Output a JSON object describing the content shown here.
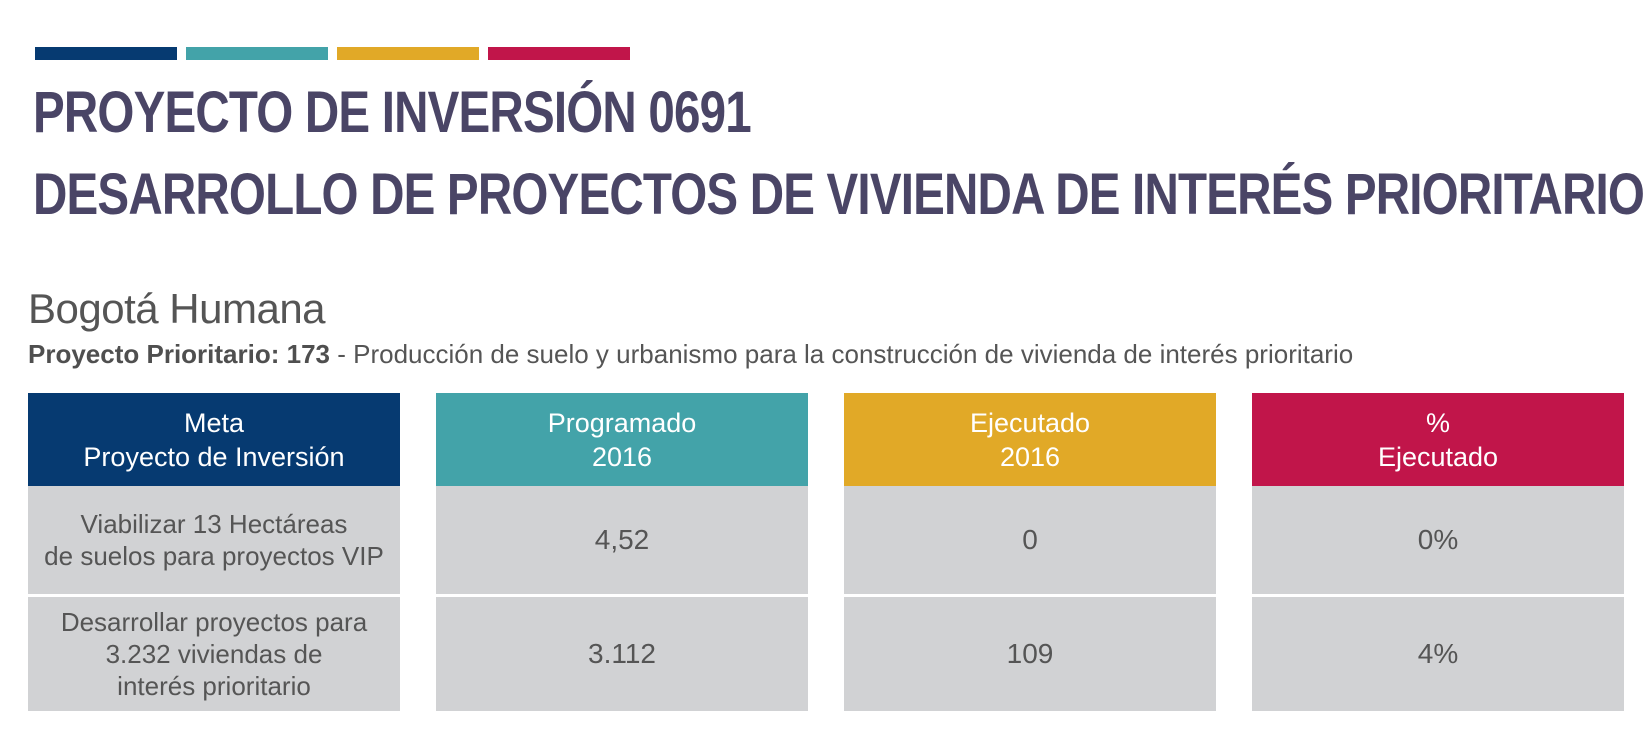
{
  "colors": {
    "navy": "#063a71",
    "teal": "#43a3a9",
    "gold": "#e1a927",
    "crimson": "#c1154a",
    "title": "#4a4566",
    "cell_bg": "#d1d2d4"
  },
  "header": {
    "title_line1": "PROYECTO DE INVERSIÓN 0691",
    "title_line2": "DESARROLLO DE PROYECTOS DE VIVIENDA DE INTERÉS PRIORITARIO"
  },
  "plan": {
    "name": "Bogotá Humana",
    "project_label": "Proyecto Prioritario: 173",
    "project_desc": " - Producción de suelo y urbanismo para la construcción de vivienda de interés prioritario"
  },
  "table": {
    "columns": [
      {
        "line1": "Meta",
        "line2": "Proyecto de Inversión"
      },
      {
        "line1": "Programado",
        "line2": "2016"
      },
      {
        "line1": "Ejecutado",
        "line2": "2016"
      },
      {
        "line1": "%",
        "line2": "Ejecutado"
      }
    ],
    "rows": [
      {
        "meta_lines": [
          "Viabilizar 13 Hectáreas",
          "de suelos para proyectos VIP"
        ],
        "programado": "4,52",
        "ejecutado": "0",
        "porcentaje": "0%"
      },
      {
        "meta_lines": [
          "Desarrollar proyectos para",
          "3.232 viviendas de",
          "interés prioritario"
        ],
        "programado": "3.112",
        "ejecutado": "109",
        "porcentaje": "4%"
      }
    ]
  }
}
